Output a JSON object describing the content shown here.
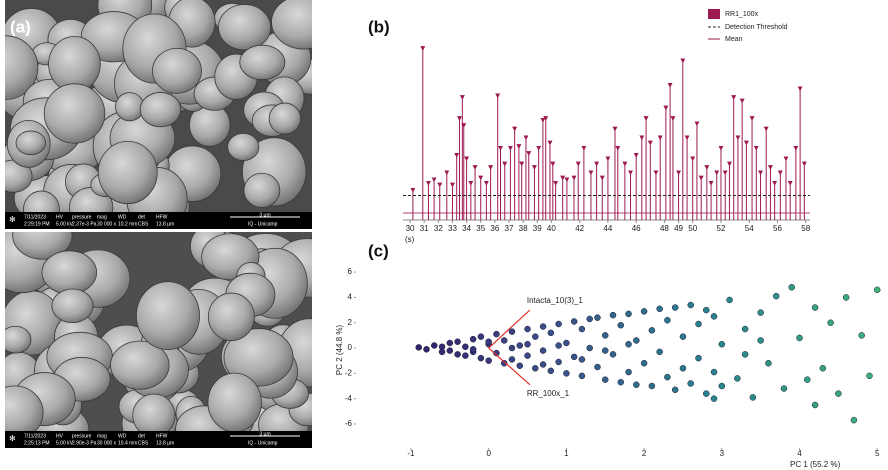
{
  "figure": {
    "panel_labels": [
      "(a)",
      "(b)",
      "(c)"
    ],
    "sem_images": [
      {
        "date": "7/11/2023",
        "time": "2:29:19 PM",
        "fields": [
          {
            "name": "HV",
            "value": "5.00 kV"
          },
          {
            "name": "pressure",
            "value": "2.37e-3 Pa"
          },
          {
            "name": "mag",
            "value": "30 000 x"
          },
          {
            "name": "WD",
            "value": "10.2 mm"
          },
          {
            "name": "det",
            "value": "CBS"
          },
          {
            "name": "HFW",
            "value": "13.8 µm"
          }
        ],
        "scale_bar": "3 µm",
        "lab": "IQ - Unicamp"
      },
      {
        "date": "7/11/2023",
        "time": "2:25:13 PM",
        "fields": [
          {
            "name": "HV",
            "value": "5.00 kV"
          },
          {
            "name": "pressure",
            "value": "2.90e-3 Pa"
          },
          {
            "name": "mag",
            "value": "30 000 x"
          },
          {
            "name": "WD",
            "value": "10.4 mm"
          },
          {
            "name": "det",
            "value": "CBS"
          },
          {
            "name": "HFW",
            "value": "13.8 µm"
          }
        ],
        "scale_bar": "3 µm",
        "lab": "IQ - Unicamp"
      }
    ]
  },
  "chart_data": [
    {
      "type": "stem",
      "xlabel": "(s)",
      "xlim": [
        29.5,
        58.3
      ],
      "ylim": [
        0,
        100
      ],
      "xticks": [
        30,
        31,
        32,
        33,
        34,
        35,
        36,
        37,
        38,
        39,
        40,
        42,
        44,
        46,
        48,
        49,
        50,
        52,
        54,
        56,
        58
      ],
      "series": [
        {
          "name": "RR1_100x",
          "color": "#9e1a52",
          "x": [
            30.2,
            30.9,
            31.3,
            31.7,
            32.1,
            32.6,
            33.0,
            33.3,
            33.5,
            33.7,
            33.8,
            34.0,
            34.3,
            34.6,
            35.0,
            35.4,
            35.7,
            36.2,
            36.4,
            36.7,
            37.1,
            37.4,
            37.7,
            37.9,
            38.2,
            38.4,
            38.8,
            39.1,
            39.4,
            39.6,
            39.9,
            40.1,
            40.3,
            40.8,
            41.1,
            41.6,
            41.9,
            42.3,
            42.8,
            43.2,
            43.6,
            44.0,
            44.5,
            44.7,
            45.2,
            45.6,
            46.0,
            46.4,
            46.7,
            47.0,
            47.4,
            47.7,
            48.1,
            48.4,
            48.6,
            49.0,
            49.3,
            49.6,
            50.0,
            50.3,
            50.6,
            51.0,
            51.3,
            51.7,
            52.0,
            52.3,
            52.6,
            52.9,
            53.2,
            53.5,
            53.8,
            54.2,
            54.5,
            54.8,
            55.2,
            55.5,
            55.8,
            56.2,
            56.6,
            56.9,
            57.3,
            57.6,
            57.9
          ],
          "values": [
            16,
            97,
            20,
            22,
            19,
            26,
            19,
            36,
            57,
            69,
            53,
            34,
            20,
            29,
            23,
            20,
            29,
            70,
            40,
            31,
            40,
            51,
            41,
            31,
            46,
            37,
            29,
            40,
            56,
            57,
            43,
            31,
            20,
            23,
            22,
            23,
            31,
            40,
            26,
            31,
            23,
            34,
            51,
            40,
            31,
            26,
            36,
            46,
            57,
            43,
            26,
            46,
            63,
            76,
            57,
            26,
            90,
            46,
            34,
            54,
            23,
            29,
            20,
            26,
            40,
            26,
            31,
            69,
            46,
            67,
            43,
            57,
            40,
            26,
            51,
            29,
            20,
            26,
            34,
            20,
            40,
            74,
            31
          ]
        }
      ],
      "detection_threshold": {
        "name": "Detection Threshold",
        "value": 14,
        "color": "#222222"
      },
      "mean": {
        "name": "Mean",
        "value": 4
      }
    },
    {
      "type": "scatter",
      "xlabel": "PC 1 (55.2 %)",
      "ylabel": "PC 2 (44.8 %)",
      "xlim": [
        -1.63,
        5.1
      ],
      "ylim": [
        -7.9,
        6.8
      ],
      "xticks": [
        -1,
        0,
        1,
        2,
        3,
        4,
        5
      ],
      "yticks": [
        -6,
        -4,
        -2,
        0,
        2,
        4,
        6
      ],
      "color_scale": [
        "#2a0f5c",
        "#3d4a8a",
        "#26828e",
        "#3fb578"
      ],
      "series": [
        {
          "x": [
            -0.9,
            -0.8,
            -0.7,
            -0.6,
            -0.5,
            -0.5,
            -0.4,
            -0.4,
            -0.3,
            -0.3,
            -0.2,
            -0.2,
            -0.1,
            -0.1,
            0,
            0,
            0.1,
            0.1,
            0.2,
            0.2,
            0.3,
            0.3,
            0.4,
            0.4,
            0.5,
            0.5,
            0.6,
            0.6,
            0.7,
            0.7,
            0.8,
            0.8,
            0.9,
            0.9,
            1.0,
            1.0,
            1.1,
            1.1,
            1.2,
            1.2,
            1.3,
            1.3,
            1.4,
            1.4,
            1.5,
            1.5,
            1.6,
            1.6,
            1.7,
            1.7,
            1.8,
            1.8,
            1.9,
            1.9,
            2.0,
            2.0,
            2.1,
            2.1,
            2.2,
            2.2,
            2.3,
            2.3,
            2.4,
            2.4,
            2.5,
            2.5,
            2.6,
            2.6,
            2.7,
            2.7,
            2.8,
            2.8,
            2.9,
            2.9,
            3.0,
            3.0,
            3.1,
            3.2,
            3.3,
            3.4,
            3.5,
            3.6,
            3.7,
            3.8,
            3.9,
            4.0,
            4.1,
            4.2,
            4.3,
            4.4,
            4.5,
            4.6,
            4.7,
            4.8,
            4.9,
            5.0,
            3.3,
            3.5,
            2.9,
            4.2,
            0.3,
            -0.6,
            0.5,
            0.9,
            1.2,
            0.7,
            1.5,
            1.8,
            0.0,
            -0.2
          ],
          "values": [
            0.05,
            -0.1,
            0.2,
            -0.3,
            0.4,
            -0.2,
            0.5,
            -0.5,
            0.1,
            -0.6,
            0.7,
            -0.3,
            0.9,
            -0.8,
            0.3,
            -1.0,
            1.1,
            -0.4,
            0.6,
            -1.2,
            1.3,
            -0.9,
            0.2,
            -1.4,
            1.5,
            -0.6,
            0.9,
            -1.6,
            1.7,
            -0.2,
            1.2,
            -1.8,
            1.9,
            -1.1,
            0.4,
            -2.0,
            2.1,
            -0.7,
            1.5,
            -2.2,
            2.3,
            0.0,
            -1.5,
            2.4,
            -2.5,
            1.0,
            2.6,
            -0.5,
            -2.7,
            1.8,
            2.7,
            -1.9,
            0.6,
            -2.9,
            2.9,
            -1.2,
            1.4,
            -3.0,
            3.1,
            -0.3,
            -2.3,
            2.2,
            3.2,
            -3.3,
            0.9,
            -1.6,
            3.4,
            -2.8,
            1.9,
            -0.8,
            3.0,
            -3.6,
            2.5,
            -1.9,
            0.3,
            -3.0,
            3.8,
            -2.4,
            1.5,
            -3.9,
            2.8,
            -1.2,
            4.1,
            -3.2,
            4.8,
            0.8,
            -2.5,
            3.2,
            -1.6,
            2.0,
            -3.6,
            4.0,
            -5.7,
            1.0,
            -2.2,
            4.6,
            -0.5,
            0.6,
            -4.0,
            -4.5,
            0.0,
            0.1,
            0.3,
            0.2,
            -0.9,
            -1.3,
            -0.2,
            0.3,
            0.5,
            -0.1
          ]
        }
      ],
      "loading_color": "#e0302a",
      "loadings": [
        {
          "label": "Intacta_10(3)_1",
          "x": 0.53,
          "y": 3.0
        },
        {
          "label": "RR_100x_1",
          "x": 0.53,
          "y": -2.9
        }
      ]
    }
  ]
}
